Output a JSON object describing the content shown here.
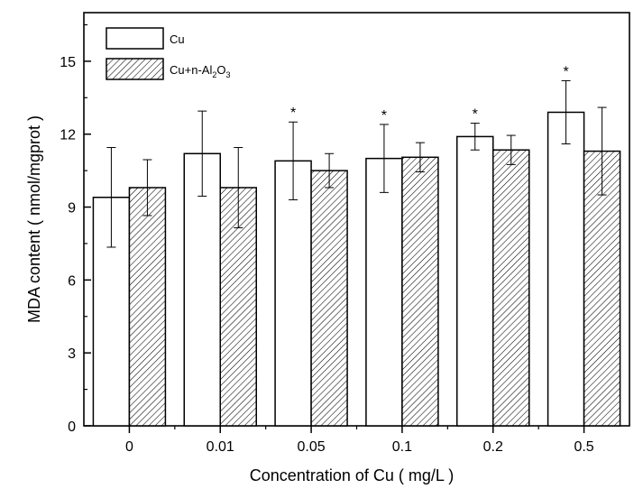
{
  "chart_data": {
    "type": "bar",
    "categories": [
      "0",
      "0.01",
      "0.05",
      "0.1",
      "0.2",
      "0.5"
    ],
    "series": [
      {
        "name": "Cu",
        "values": [
          9.4,
          11.2,
          10.9,
          11.0,
          11.9,
          12.9
        ],
        "errors": [
          2.05,
          1.75,
          1.6,
          1.4,
          0.55,
          1.3
        ],
        "significance": [
          "",
          "",
          "*",
          "*",
          "*",
          "*"
        ],
        "fill": "white"
      },
      {
        "name": "Cu+n-Al2O3",
        "name_parts": {
          "base": "Cu+n-Al",
          "sub1": "2",
          "mid": "O",
          "sub2": "3"
        },
        "values": [
          9.8,
          9.8,
          10.5,
          11.05,
          11.35,
          11.3
        ],
        "errors": [
          1.15,
          1.65,
          0.7,
          0.6,
          0.6,
          1.8
        ],
        "fill": "diagonal-hatch"
      }
    ],
    "xlabel": "Concentration of Cu ( mg/L )",
    "ylabel": "MDA content ( nmol/mgprot )",
    "ylim": [
      0,
      17
    ],
    "yticks": [
      "0",
      "3",
      "6",
      "9",
      "12",
      "15"
    ],
    "y_minor_step": 1.5,
    "grid": false,
    "legend_position": "top-left",
    "colors": {
      "stroke": "#000000",
      "background": "#ffffff"
    }
  }
}
